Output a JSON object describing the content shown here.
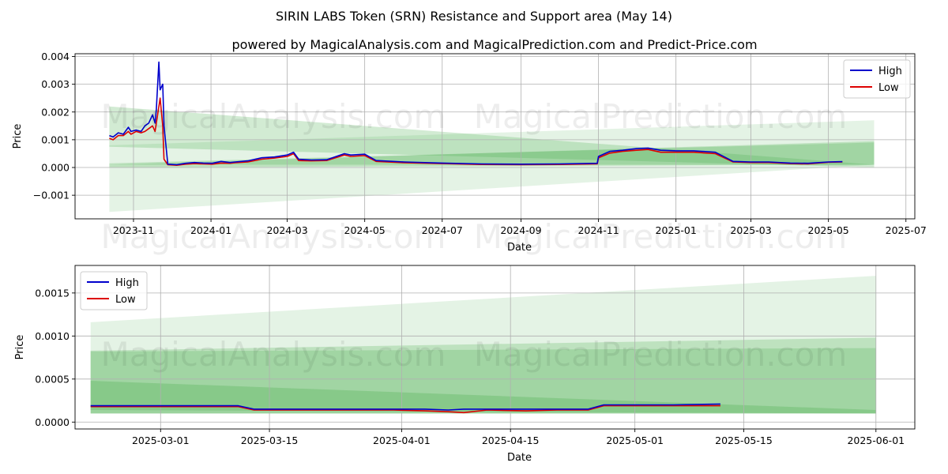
{
  "title": "SIRIN LABS Token (SRN) Resistance and Support area (May 14)",
  "subtitle": "powered by MagicalAnalysis.com and MagicalPrediction.com and Predict-Price.com",
  "watermarks": [
    "MagicalAnalysis.com",
    "MagicalPrediction.com"
  ],
  "colors": {
    "high": "#0000cc",
    "low": "#dd0000",
    "band": "#4caf50",
    "grid": "#b0b0b0"
  },
  "chart_data": [
    {
      "type": "line",
      "name": "full-history",
      "title": "",
      "xlabel": "Date",
      "ylabel": "Price",
      "xlim": [
        "2023-09-16",
        "2025-07-08"
      ],
      "ylim": [
        -0.00185,
        0.0041
      ],
      "grid": true,
      "legend": "top-right",
      "x_ticks": [
        {
          "date": "2023-11-01",
          "label": "2023-11"
        },
        {
          "date": "2024-01-01",
          "label": "2024-01"
        },
        {
          "date": "2024-03-01",
          "label": "2024-03"
        },
        {
          "date": "2024-05-01",
          "label": "2024-05"
        },
        {
          "date": "2024-07-01",
          "label": "2024-07"
        },
        {
          "date": "2024-09-01",
          "label": "2024-09"
        },
        {
          "date": "2024-11-01",
          "label": "2024-11"
        },
        {
          "date": "2025-01-01",
          "label": "2025-01"
        },
        {
          "date": "2025-03-01",
          "label": "2025-03"
        },
        {
          "date": "2025-05-01",
          "label": "2025-05"
        },
        {
          "date": "2025-07-01",
          "label": "2025-07"
        }
      ],
      "y_ticks": [
        {
          "value": -0.001,
          "label": "−0.001"
        },
        {
          "value": 0.0,
          "label": "0.000"
        },
        {
          "value": 0.001,
          "label": "0.001"
        },
        {
          "value": 0.002,
          "label": "0.002"
        },
        {
          "value": 0.003,
          "label": "0.003"
        },
        {
          "value": 0.004,
          "label": "0.004"
        }
      ],
      "bands": [
        {
          "x0": "2023-10-13",
          "x1": "2025-06-06",
          "top0": 0.0022,
          "top1": 0.0001,
          "bot0": 0.00075,
          "bot1": 0.0,
          "opacity": 0.25
        },
        {
          "x0": "2023-10-13",
          "x1": "2025-06-06",
          "top0": 0.0008,
          "top1": 0.0017,
          "bot0": -0.0016,
          "bot1": 0.0001,
          "opacity": 0.15
        },
        {
          "x0": "2023-10-13",
          "x1": "2025-06-06",
          "top0": 0.0001,
          "top1": 0.00095,
          "bot0": 0.0,
          "bot1": 0.0001,
          "opacity": 0.25
        },
        {
          "x0": "2023-10-13",
          "x1": "2025-06-06",
          "top0": 0.00015,
          "top1": 0.0009,
          "bot0": 0.0001,
          "bot1": 0.0001,
          "opacity": 0.25
        }
      ],
      "x": [
        "2023-10-13",
        "2023-10-16",
        "2023-10-20",
        "2023-10-24",
        "2023-10-28",
        "2023-10-30",
        "2023-11-03",
        "2023-11-07",
        "2023-11-10",
        "2023-11-13",
        "2023-11-16",
        "2023-11-18",
        "2023-11-19",
        "2023-11-21",
        "2023-11-22",
        "2023-11-24",
        "2023-11-25",
        "2023-11-28",
        "2023-12-05",
        "2023-12-12",
        "2023-12-19",
        "2023-12-26",
        "2024-01-02",
        "2024-01-09",
        "2024-01-16",
        "2024-01-20",
        "2024-01-30",
        "2024-02-10",
        "2024-02-20",
        "2024-03-01",
        "2024-03-06",
        "2024-03-10",
        "2024-03-20",
        "2024-04-01",
        "2024-04-15",
        "2024-04-20",
        "2024-05-01",
        "2024-05-10",
        "2024-06-01",
        "2024-07-01",
        "2024-08-01",
        "2024-09-01",
        "2024-10-01",
        "2024-10-31",
        "2024-11-01",
        "2024-11-10",
        "2024-11-20",
        "2024-12-01",
        "2024-12-10",
        "2024-12-20",
        "2025-01-01",
        "2025-01-15",
        "2025-02-01",
        "2025-02-15",
        "2025-03-01",
        "2025-03-15",
        "2025-04-01",
        "2025-04-15",
        "2025-05-01",
        "2025-05-12"
      ],
      "series": [
        {
          "name": "High",
          "values": [
            0.00115,
            0.0011,
            0.00125,
            0.0012,
            0.00145,
            0.0013,
            0.00135,
            0.0013,
            0.0015,
            0.0016,
            0.0019,
            0.0016,
            0.0021,
            0.0038,
            0.0028,
            0.003,
            0.0015,
            0.00012,
            0.0001,
            0.00015,
            0.00018,
            0.00016,
            0.00015,
            0.00022,
            0.00018,
            0.0002,
            0.00024,
            0.00035,
            0.00038,
            0.00045,
            0.00055,
            0.0003,
            0.00027,
            0.00028,
            0.0005,
            0.00045,
            0.00048,
            0.00025,
            0.0002,
            0.00016,
            0.00013,
            0.00012,
            0.00013,
            0.00015,
            0.0004,
            0.00058,
            0.00062,
            0.00068,
            0.0007,
            0.00062,
            0.0006,
            0.0006,
            0.00055,
            0.00022,
            0.0002,
            0.0002,
            0.00016,
            0.00015,
            0.0002,
            0.00021
          ]
        },
        {
          "name": "Low",
          "values": [
            0.00105,
            0.001,
            0.00115,
            0.00115,
            0.0013,
            0.0012,
            0.0013,
            0.00125,
            0.0013,
            0.0014,
            0.0015,
            0.0013,
            0.0016,
            0.0022,
            0.0025,
            0.0015,
            0.0003,
            0.0001,
            8e-05,
            0.00012,
            0.00014,
            0.00013,
            0.00012,
            0.00016,
            0.00015,
            0.00017,
            0.0002,
            0.0003,
            0.00034,
            0.0004,
            0.0005,
            0.00025,
            0.00024,
            0.00025,
            0.00045,
            0.0004,
            0.00043,
            0.00022,
            0.00017,
            0.00014,
            0.00011,
            0.0001,
            0.00011,
            0.00013,
            0.00035,
            0.00052,
            0.00058,
            0.00062,
            0.00065,
            0.00055,
            0.00055,
            0.00055,
            0.0005,
            0.0002,
            0.00018,
            0.00018,
            0.00014,
            0.00013,
            0.00019,
            0.0002
          ]
        }
      ]
    },
    {
      "type": "line",
      "name": "recent-zoom",
      "title": "",
      "xlabel": "Date",
      "ylabel": "Price",
      "xlim": [
        "2025-02-18",
        "2025-06-06"
      ],
      "ylim": [
        -8e-05,
        0.00182
      ],
      "grid": true,
      "legend": "top-left",
      "x_ticks": [
        {
          "date": "2025-03-01",
          "label": "2025-03-01"
        },
        {
          "date": "2025-03-15",
          "label": "2025-03-15"
        },
        {
          "date": "2025-04-01",
          "label": "2025-04-01"
        },
        {
          "date": "2025-04-15",
          "label": "2025-04-15"
        },
        {
          "date": "2025-05-01",
          "label": "2025-05-01"
        },
        {
          "date": "2025-05-15",
          "label": "2025-05-15"
        },
        {
          "date": "2025-06-01",
          "label": "2025-06-01"
        }
      ],
      "y_ticks": [
        {
          "value": 0.0,
          "label": "0.0000"
        },
        {
          "value": 0.0005,
          "label": "0.0005"
        },
        {
          "value": 0.001,
          "label": "0.0010"
        },
        {
          "value": 0.0015,
          "label": "0.0015"
        }
      ],
      "bands": [
        {
          "x0": "2025-02-20",
          "x1": "2025-06-01",
          "top0": 0.00116,
          "top1": 0.0017,
          "bot0": 0.0001,
          "bot1": 0.0001,
          "opacity": 0.15
        },
        {
          "x0": "2025-02-20",
          "x1": "2025-06-01",
          "top0": 0.00083,
          "top1": 0.00098,
          "bot0": 0.0001,
          "bot1": 0.0001,
          "opacity": 0.25
        },
        {
          "x0": "2025-02-20",
          "x1": "2025-06-01",
          "top0": 0.00082,
          "top1": 0.00086,
          "bot0": 0.00014,
          "bot1": 0.0001,
          "opacity": 0.25
        },
        {
          "x0": "2025-02-20",
          "x1": "2025-06-01",
          "top0": 0.00048,
          "top1": 0.00014,
          "bot0": 0.0001,
          "bot1": 0.0001,
          "opacity": 0.3
        }
      ],
      "x": [
        "2025-02-20",
        "2025-02-24",
        "2025-02-28",
        "2025-03-03",
        "2025-03-07",
        "2025-03-11",
        "2025-03-13",
        "2025-03-18",
        "2025-03-22",
        "2025-03-27",
        "2025-03-31",
        "2025-04-04",
        "2025-04-07",
        "2025-04-09",
        "2025-04-12",
        "2025-04-17",
        "2025-04-21",
        "2025-04-25",
        "2025-04-27",
        "2025-05-01",
        "2025-05-06",
        "2025-05-12"
      ],
      "series": [
        {
          "name": "High",
          "values": [
            0.00019,
            0.00019,
            0.00019,
            0.00019,
            0.00019,
            0.00019,
            0.00015,
            0.00015,
            0.00015,
            0.00015,
            0.00015,
            0.00015,
            0.00014,
            0.00015,
            0.00015,
            0.00015,
            0.00015,
            0.00015,
            0.0002,
            0.0002,
            0.0002,
            0.00021
          ]
        },
        {
          "name": "Low",
          "values": [
            0.00018,
            0.00018,
            0.00018,
            0.00018,
            0.00018,
            0.00018,
            0.00014,
            0.00014,
            0.00014,
            0.00014,
            0.00014,
            0.00013,
            0.00012,
            0.00011,
            0.00014,
            0.00013,
            0.00014,
            0.00014,
            0.00019,
            0.00019,
            0.00019,
            0.00019
          ]
        }
      ]
    }
  ]
}
